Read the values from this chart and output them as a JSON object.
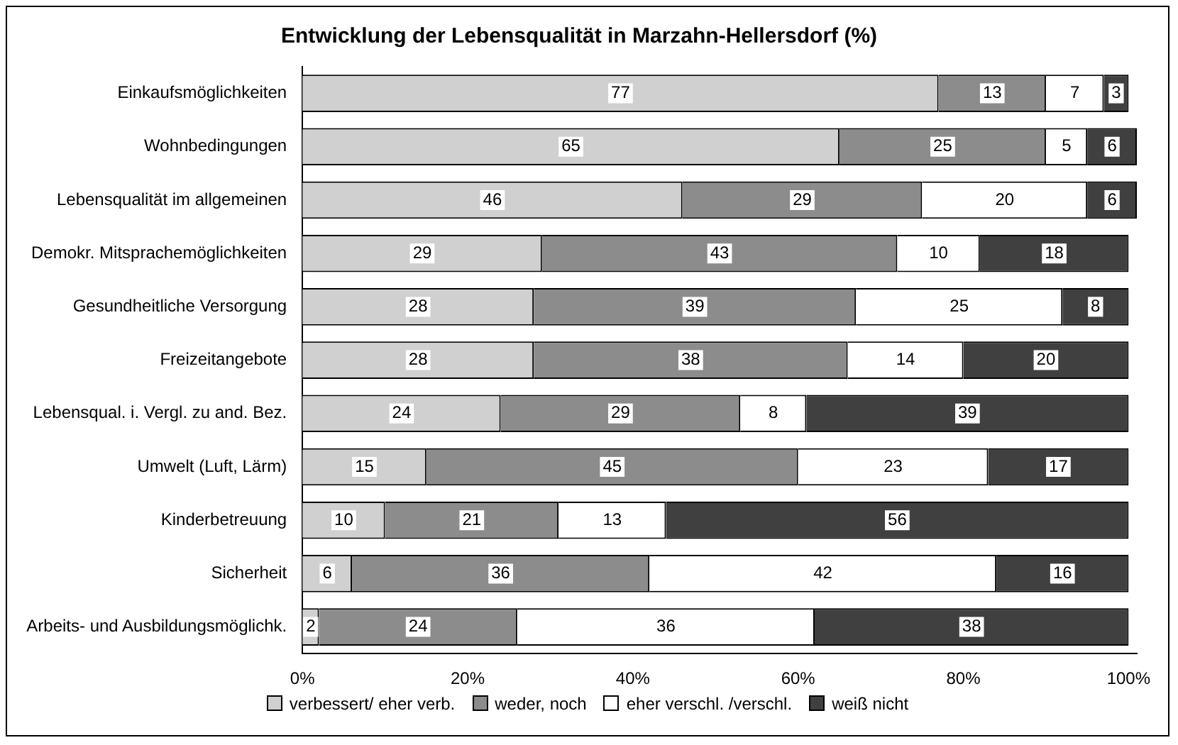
{
  "chart_data": {
    "type": "bar",
    "orientation": "horizontal",
    "stacked": true,
    "title": "Entwicklung der Lebensqualität in Marzahn-Hellersdorf (%)",
    "categories": [
      "Einkaufsmöglichkeiten",
      "Wohnbedingungen",
      "Lebensqualität im allgemeinen",
      "Demokr. Mitsprachemöglichkeiten",
      "Gesundheitliche Versorgung",
      "Freizeitangebote",
      "Lebensqual. i. Vergl. zu and. Bez.",
      "Umwelt (Luft, Lärm)",
      "Kinderbetreuung",
      "Sicherheit",
      "Arbeits- und Ausbildungsmöglichk."
    ],
    "series": [
      {
        "name": "verbessert/ eher verb.",
        "color": "#d0d0d0",
        "values": [
          77,
          65,
          46,
          29,
          28,
          28,
          24,
          15,
          10,
          6,
          2
        ]
      },
      {
        "name": "weder, noch",
        "color": "#8c8c8c",
        "values": [
          13,
          25,
          29,
          43,
          39,
          38,
          29,
          45,
          21,
          36,
          24
        ]
      },
      {
        "name": "eher verschl. /verschl.",
        "color": "#ffffff",
        "values": [
          7,
          5,
          20,
          10,
          25,
          14,
          8,
          23,
          13,
          42,
          36
        ]
      },
      {
        "name": "weiß nicht",
        "color": "#404040",
        "values": [
          3,
          6,
          6,
          18,
          8,
          20,
          39,
          17,
          56,
          16,
          38
        ]
      }
    ],
    "xlim": [
      0,
      101
    ],
    "xticks": [
      {
        "value": 0,
        "label": "0%"
      },
      {
        "value": 20,
        "label": "20%"
      },
      {
        "value": 40,
        "label": "40%"
      },
      {
        "value": 60,
        "label": "60%"
      },
      {
        "value": 80,
        "label": "80%"
      },
      {
        "value": 100,
        "label": "100%"
      }
    ],
    "grid": false,
    "legend": "bottom",
    "data_labels": true
  }
}
